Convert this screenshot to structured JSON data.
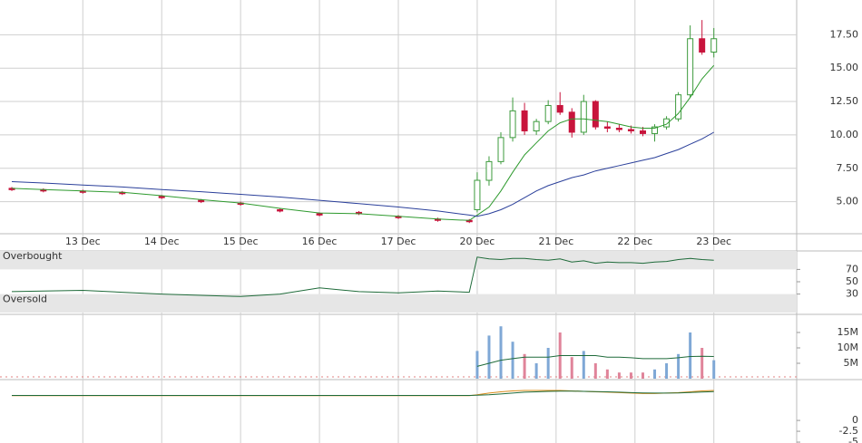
{
  "chart_data": [
    {
      "type": "candlestick",
      "x": [
        -0.9,
        -0.5,
        0,
        0.5,
        1,
        1.5,
        2,
        2.5,
        3,
        3.5,
        4,
        4.5,
        4.9,
        5.0,
        5.15,
        5.3,
        5.45,
        5.6,
        5.75,
        5.9,
        6.05,
        6.2,
        6.35,
        6.5,
        6.65,
        6.8,
        6.95,
        7.1,
        7.25,
        7.4,
        7.55,
        7.7,
        7.85,
        8.0
      ],
      "open": [
        6.0,
        5.9,
        5.8,
        5.7,
        5.4,
        5.1,
        4.9,
        4.4,
        4.1,
        4.2,
        3.9,
        3.7,
        3.6,
        4.4,
        6.6,
        8.0,
        9.8,
        11.8,
        10.3,
        11.0,
        12.2,
        11.7,
        10.2,
        12.5,
        10.6,
        10.5,
        10.4,
        10.3,
        10.1,
        10.6,
        11.2,
        13.0,
        17.2,
        16.2
      ],
      "high": [
        6.1,
        6.0,
        5.9,
        5.8,
        5.5,
        5.2,
        5.0,
        4.5,
        4.2,
        4.3,
        4.0,
        3.8,
        3.7,
        7.2,
        8.4,
        10.2,
        12.8,
        12.4,
        11.2,
        12.6,
        13.2,
        12.0,
        13.0,
        12.6,
        11.0,
        10.8,
        10.7,
        10.6,
        10.8,
        11.4,
        13.2,
        18.2,
        18.6,
        18.0
      ],
      "low": [
        5.8,
        5.7,
        5.6,
        5.5,
        5.2,
        4.9,
        4.7,
        4.2,
        3.9,
        4.0,
        3.7,
        3.5,
        3.4,
        4.2,
        6.2,
        7.8,
        9.5,
        10.0,
        10.0,
        10.8,
        11.5,
        9.8,
        10.0,
        10.4,
        10.2,
        10.2,
        10.1,
        9.9,
        9.5,
        10.4,
        11.0,
        12.8,
        16.0,
        15.8
      ],
      "close": [
        5.9,
        5.8,
        5.7,
        5.6,
        5.3,
        5.0,
        4.8,
        4.3,
        4.0,
        4.1,
        3.8,
        3.6,
        3.5,
        6.6,
        8.0,
        9.8,
        11.8,
        10.3,
        11.0,
        12.2,
        11.7,
        10.2,
        12.5,
        10.6,
        10.5,
        10.4,
        10.3,
        10.1,
        10.6,
        11.2,
        13.0,
        17.2,
        16.2,
        17.2
      ],
      "up_color": "#3c9a3c",
      "down_color": "#c8143c",
      "series": [
        {
          "color": "#2e9a2e",
          "values": [
            6.0,
            5.9,
            5.8,
            5.7,
            5.45,
            5.15,
            4.9,
            4.5,
            4.15,
            4.1,
            3.9,
            3.7,
            3.6,
            4.0,
            4.6,
            5.8,
            7.2,
            8.5,
            9.4,
            10.3,
            10.9,
            11.2,
            11.2,
            11.1,
            11.0,
            10.8,
            10.6,
            10.5,
            10.5,
            10.8,
            11.6,
            12.8,
            14.2,
            15.2
          ]
        },
        {
          "color": "#2a3f9a",
          "values": [
            6.5,
            6.4,
            6.25,
            6.1,
            5.9,
            5.75,
            5.55,
            5.35,
            5.1,
            4.85,
            4.6,
            4.3,
            4.0,
            3.9,
            4.1,
            4.4,
            4.8,
            5.3,
            5.8,
            6.2,
            6.5,
            6.8,
            7.0,
            7.3,
            7.5,
            7.7,
            7.9,
            8.1,
            8.3,
            8.6,
            8.9,
            9.3,
            9.7,
            10.2
          ]
        }
      ],
      "xlim": [
        -1.05,
        9.05
      ],
      "xticks": [
        {
          "value": 0,
          "label": "13 Dec"
        },
        {
          "value": 1,
          "label": "14 Dec"
        },
        {
          "value": 2,
          "label": "15 Dec"
        },
        {
          "value": 3,
          "label": "16 Dec"
        },
        {
          "value": 4,
          "label": "17 Dec"
        },
        {
          "value": 5,
          "label": "20 Dec"
        },
        {
          "value": 6,
          "label": "21 Dec"
        },
        {
          "value": 7,
          "label": "22 Dec"
        },
        {
          "value": 8,
          "label": "23 Dec"
        }
      ],
      "ylim": [
        2.6,
        20.1
      ],
      "yticks": [
        {
          "value": 5,
          "label": "5.00"
        },
        {
          "value": 7.5,
          "label": "7.50"
        },
        {
          "value": 10,
          "label": "10.00"
        },
        {
          "value": 12.5,
          "label": "12.50"
        },
        {
          "value": 15,
          "label": "15.00"
        },
        {
          "value": 17.5,
          "label": "17.50"
        }
      ],
      "grid": true
    },
    {
      "type": "line",
      "series": [
        {
          "color": "#1f6b3a",
          "values": [
            34,
            35,
            36,
            33,
            30,
            28,
            26,
            30,
            40,
            34,
            32,
            35,
            33,
            90,
            87,
            86,
            88,
            88,
            86,
            85,
            87,
            82,
            84,
            80,
            82,
            81,
            81,
            80,
            82,
            83,
            86,
            88,
            86,
            85
          ]
        }
      ],
      "bands": [
        {
          "label": "Overbought",
          "from": 70,
          "to": 100
        },
        {
          "label": "Oversold",
          "from": 0,
          "to": 30
        }
      ],
      "band_color": "#e6e6e6",
      "ylim": [
        0,
        100
      ],
      "yticks": [
        30,
        50,
        70
      ]
    },
    {
      "type": "bar",
      "values": [
        null,
        null,
        null,
        null,
        null,
        null,
        null,
        null,
        null,
        null,
        null,
        null,
        null,
        9000000,
        14000000,
        17000000,
        12000000,
        8000000,
        5000000,
        10000000,
        15000000,
        7000000,
        9000000,
        5000000,
        3000000,
        2000000,
        2000000,
        2000000,
        3000000,
        5000000,
        8000000,
        15000000,
        10000000,
        6000000
      ],
      "up_color": "#7fa8d6",
      "down_color": "#e0849a",
      "series": [
        {
          "color": "#1f6b3a",
          "values": [
            null,
            null,
            null,
            null,
            null,
            null,
            null,
            null,
            null,
            null,
            null,
            null,
            null,
            4000000,
            5000000,
            6000000,
            6500000,
            7000000,
            7000000,
            7000000,
            7500000,
            7500000,
            7500000,
            7500000,
            7000000,
            7000000,
            6800000,
            6500000,
            6500000,
            6500000,
            6800000,
            7200000,
            7300000,
            7200000
          ]
        }
      ],
      "ylim": [
        0,
        20000000
      ],
      "yticks": [
        {
          "value": 5000000,
          "label": "5M"
        },
        {
          "value": 10000000,
          "label": "10M"
        },
        {
          "value": 15000000,
          "label": "15M"
        }
      ]
    },
    {
      "type": "line",
      "series": [
        {
          "color": "#d98c1a",
          "values": [
            5.7,
            5.7,
            5.7,
            5.7,
            5.7,
            5.7,
            5.7,
            5.7,
            5.7,
            5.7,
            5.7,
            5.7,
            5.7,
            5.9,
            6.3,
            6.6,
            6.8,
            6.9,
            6.9,
            6.9,
            6.9,
            6.8,
            6.7,
            6.6,
            6.5,
            6.4,
            6.3,
            6.2,
            6.2,
            6.3,
            6.4,
            6.6,
            6.8,
            6.9
          ]
        },
        {
          "color": "#1f6b3a",
          "values": [
            5.75,
            5.75,
            5.75,
            5.75,
            5.75,
            5.75,
            5.75,
            5.75,
            5.75,
            5.75,
            5.75,
            5.75,
            5.75,
            5.8,
            5.9,
            6.1,
            6.3,
            6.5,
            6.6,
            6.7,
            6.75,
            6.75,
            6.7,
            6.65,
            6.6,
            6.5,
            6.4,
            6.35,
            6.3,
            6.3,
            6.35,
            6.45,
            6.55,
            6.65
          ]
        }
      ],
      "ylim": [
        -5.2,
        9.2
      ],
      "yticks": [
        -5,
        -2.5,
        0
      ]
    }
  ]
}
